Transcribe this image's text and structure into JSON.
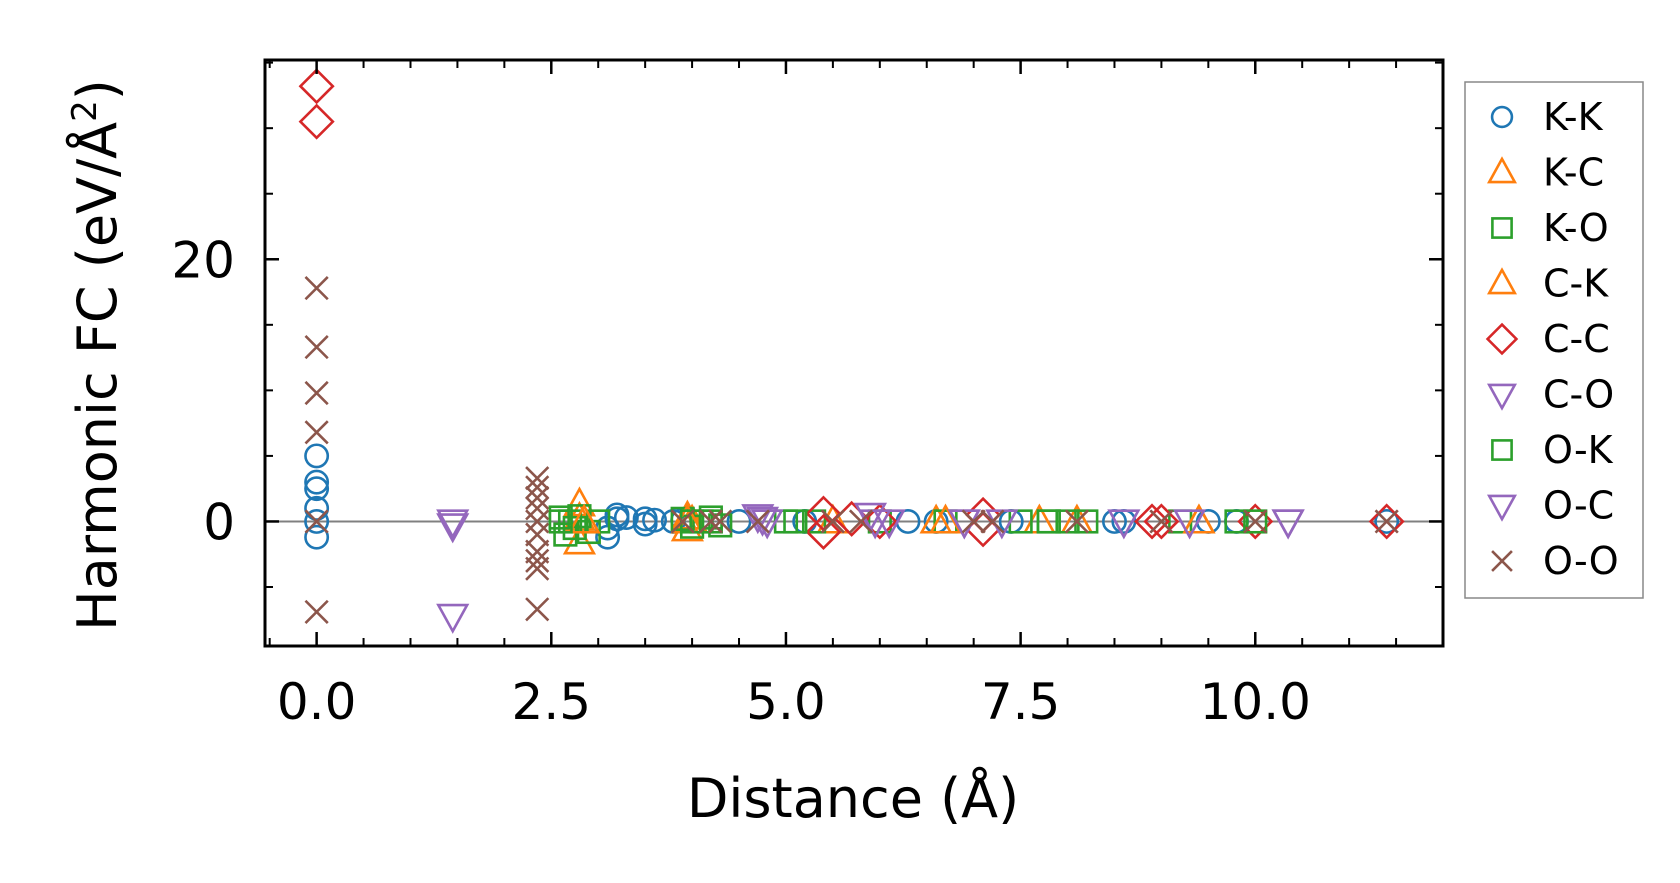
{
  "chart_data": {
    "type": "scatter",
    "title": "",
    "xlabel": "Distance (Å)",
    "ylabel_main": "Harmonic FC (eV/Å",
    "ylabel_sup": "2",
    "ylabel_tail": ")",
    "xlim": [
      -0.55,
      12.0
    ],
    "ylim": [
      -9.5,
      35.2
    ],
    "xticks": [
      0.0,
      2.5,
      5.0,
      7.5,
      10.0
    ],
    "xtick_labels": [
      "0.0",
      "2.5",
      "5.0",
      "7.5",
      "10.0"
    ],
    "yticks": [
      0,
      20
    ],
    "ytick_labels": [
      "0",
      "20"
    ],
    "reference_line_y": 0,
    "legend_position": "right",
    "colors": {
      "blue": "#1f77b4",
      "orange": "#ff7f0e",
      "green": "#2ca02c",
      "red": "#d62728",
      "purple": "#9467bd",
      "brown": "#8c564b",
      "refline": "#808080"
    },
    "series": [
      {
        "name": "K-K",
        "marker": "circle",
        "color": "#1f77b4",
        "points": [
          [
            0.0,
            5.0
          ],
          [
            0.0,
            3.0
          ],
          [
            0.0,
            2.5
          ],
          [
            0.0,
            1.0
          ],
          [
            0.0,
            0.0
          ],
          [
            0.0,
            -1.2
          ],
          [
            3.1,
            -1.2
          ],
          [
            3.1,
            -0.5
          ],
          [
            3.2,
            0.2
          ],
          [
            3.2,
            0.5
          ],
          [
            3.3,
            0.3
          ],
          [
            3.5,
            0.2
          ],
          [
            3.5,
            -0.2
          ],
          [
            3.6,
            0.1
          ],
          [
            3.8,
            0.0
          ],
          [
            3.9,
            0.1
          ],
          [
            4.5,
            0.0
          ],
          [
            5.2,
            0.0
          ],
          [
            6.3,
            0.0
          ],
          [
            6.6,
            0.0
          ],
          [
            7.4,
            0.0
          ],
          [
            8.5,
            0.0
          ],
          [
            8.6,
            0.0
          ],
          [
            9.5,
            0.0
          ],
          [
            9.8,
            0.0
          ],
          [
            11.4,
            0.0
          ]
        ]
      },
      {
        "name": "K-C",
        "marker": "triangle-up",
        "color": "#ff7f0e",
        "points": [
          [
            2.8,
            1.3
          ],
          [
            2.8,
            -1.6
          ],
          [
            2.8,
            0.2
          ],
          [
            3.95,
            -0.6
          ],
          [
            3.95,
            0.3
          ],
          [
            4.0,
            0.0
          ],
          [
            5.5,
            0.0
          ],
          [
            6.6,
            0.0
          ],
          [
            7.7,
            0.0
          ],
          [
            8.1,
            0.0
          ],
          [
            9.4,
            0.0
          ]
        ]
      },
      {
        "name": "K-O",
        "marker": "square",
        "color": "#2ca02c",
        "points": [
          [
            2.6,
            0.3
          ],
          [
            2.65,
            -1.0
          ],
          [
            2.7,
            0.0
          ],
          [
            2.75,
            -0.5
          ],
          [
            2.8,
            0.4
          ],
          [
            2.9,
            -0.8
          ],
          [
            3.0,
            0.0
          ],
          [
            3.9,
            0.2
          ],
          [
            4.0,
            -0.4
          ],
          [
            4.1,
            0.0
          ],
          [
            4.2,
            0.3
          ],
          [
            4.3,
            -0.3
          ],
          [
            5.0,
            0.0
          ],
          [
            5.3,
            0.0
          ],
          [
            6.0,
            0.0
          ],
          [
            6.7,
            0.0
          ],
          [
            7.5,
            0.0
          ],
          [
            7.8,
            0.0
          ],
          [
            8.0,
            0.0
          ],
          [
            8.2,
            0.0
          ],
          [
            9.2,
            0.0
          ],
          [
            9.8,
            0.0
          ]
        ]
      },
      {
        "name": "C-K",
        "marker": "triangle-up",
        "color": "#ff7f0e",
        "points": [
          [
            2.85,
            0.0
          ],
          [
            3.95,
            0.0
          ],
          [
            6.7,
            0.0
          ],
          [
            9.4,
            0.0
          ]
        ]
      },
      {
        "name": "C-C",
        "marker": "diamond",
        "color": "#d62728",
        "points": [
          [
            0.0,
            33.2
          ],
          [
            0.0,
            30.5
          ],
          [
            5.4,
            0.6
          ],
          [
            5.4,
            -0.8
          ],
          [
            5.7,
            0.2
          ],
          [
            6.0,
            0.0
          ],
          [
            7.1,
            0.5
          ],
          [
            7.1,
            -0.6
          ],
          [
            8.9,
            0.0
          ],
          [
            9.0,
            0.0
          ],
          [
            10.0,
            0.0
          ],
          [
            11.4,
            0.0
          ]
        ]
      },
      {
        "name": "C-O",
        "marker": "triangle-down",
        "color": "#9467bd",
        "points": [
          [
            1.45,
            0.0
          ],
          [
            1.45,
            -7.2
          ],
          [
            4.7,
            0.4
          ],
          [
            4.8,
            0.0
          ],
          [
            5.9,
            0.5
          ],
          [
            6.1,
            0.0
          ],
          [
            6.9,
            0.0
          ],
          [
            7.3,
            0.0
          ],
          [
            8.6,
            0.0
          ],
          [
            9.3,
            0.0
          ],
          [
            10.35,
            0.0
          ]
        ]
      },
      {
        "name": "O-K",
        "marker": "square",
        "color": "#2ca02c",
        "points": [
          [
            2.6,
            0.0
          ],
          [
            4.0,
            0.0
          ],
          [
            4.2,
            0.0
          ],
          [
            5.1,
            0.0
          ],
          [
            7.8,
            0.0
          ],
          [
            10.0,
            0.0
          ]
        ]
      },
      {
        "name": "O-C",
        "marker": "triangle-down",
        "color": "#9467bd",
        "points": [
          [
            1.45,
            -0.3
          ],
          [
            4.75,
            0.2
          ],
          [
            5.95,
            0.0
          ],
          [
            6.9,
            0.0
          ],
          [
            10.35,
            0.0
          ]
        ]
      },
      {
        "name": "O-O",
        "marker": "x",
        "color": "#8c564b",
        "points": [
          [
            0.0,
            17.8
          ],
          [
            0.0,
            13.3
          ],
          [
            0.0,
            9.8
          ],
          [
            0.0,
            6.8
          ],
          [
            0.0,
            0.0
          ],
          [
            0.0,
            -6.9
          ],
          [
            2.35,
            3.3
          ],
          [
            2.35,
            2.6
          ],
          [
            2.35,
            1.8
          ],
          [
            2.35,
            1.0
          ],
          [
            2.35,
            0.0
          ],
          [
            2.35,
            -1.0
          ],
          [
            2.35,
            -2.3
          ],
          [
            2.35,
            -3.0
          ],
          [
            2.35,
            -3.6
          ],
          [
            2.35,
            -6.7
          ],
          [
            3.9,
            0.0
          ],
          [
            4.2,
            0.0
          ],
          [
            4.3,
            0.0
          ],
          [
            4.7,
            0.0
          ],
          [
            5.5,
            0.0
          ],
          [
            5.8,
            0.0
          ],
          [
            7.0,
            0.0
          ],
          [
            7.2,
            0.0
          ],
          [
            8.1,
            0.0
          ],
          [
            9.0,
            0.0
          ],
          [
            10.0,
            0.0
          ],
          [
            11.4,
            0.0
          ]
        ]
      }
    ]
  }
}
